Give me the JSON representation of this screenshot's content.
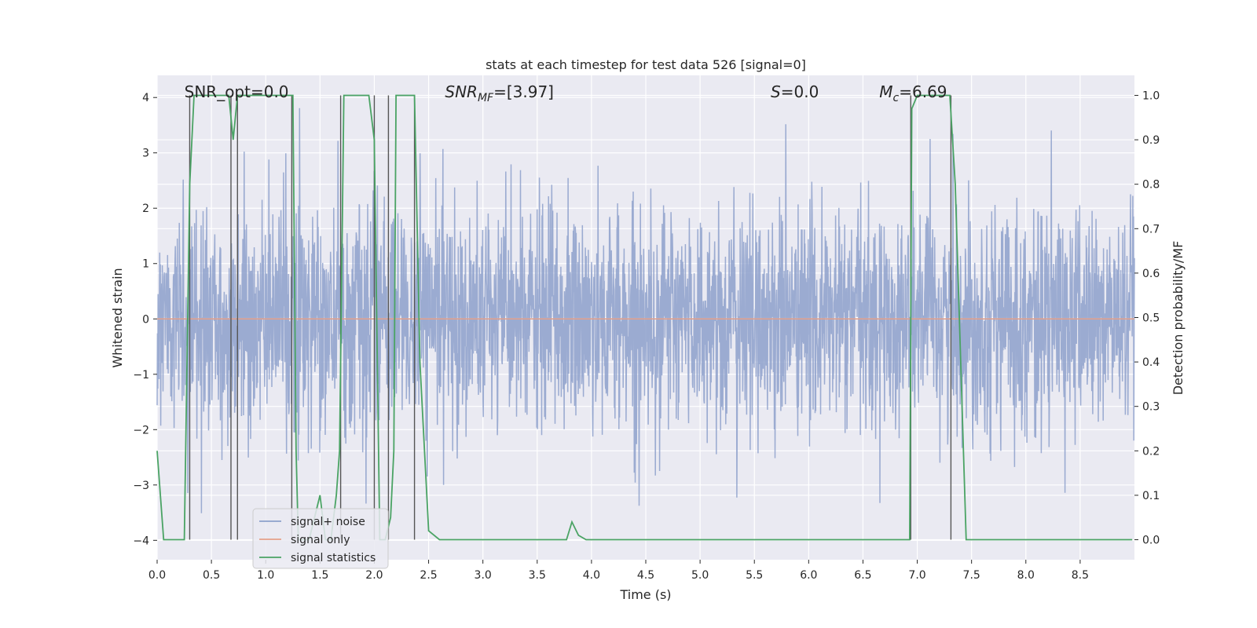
{
  "chart_data": {
    "type": "line",
    "title": "stats at each timestep for test data 526 [signal=0]",
    "xlabel": "Time (s)",
    "ylabel_left": "Whitened strain",
    "ylabel_right": "Detection probability/MF",
    "xlim": [
      0.0,
      9.0
    ],
    "ylim_left": [
      -4.35,
      4.4
    ],
    "ylim_right": [
      -0.045,
      1.045
    ],
    "x_ticks": [
      "0.0",
      "0.5",
      "1.0",
      "1.5",
      "2.0",
      "2.5",
      "3.0",
      "3.5",
      "4.0",
      "4.5",
      "5.0",
      "5.5",
      "6.0",
      "6.5",
      "7.0",
      "7.5",
      "8.0",
      "8.5"
    ],
    "y_left_ticks": [
      "4",
      "3",
      "2",
      "1",
      "0",
      "−1",
      "−2",
      "−3",
      "−4"
    ],
    "y_right_ticks": [
      "1.0",
      "0.9",
      "0.8",
      "0.7",
      "0.6",
      "0.5",
      "0.4",
      "0.3",
      "0.2",
      "0.1",
      "0.0"
    ],
    "annotations": [
      {
        "text": "SNR_opt=0.0",
        "x": 0.2
      },
      {
        "text": "SNR_MF=[3.97]",
        "x": 2.6
      },
      {
        "text": "S=0.0",
        "x": 5.6
      },
      {
        "text": "M_c=6.69",
        "x": 6.6
      }
    ],
    "legend": {
      "position": "lower-left",
      "entries": [
        {
          "label": "signal+ noise",
          "color": "#8da0cb"
        },
        {
          "label": "signal only",
          "color": "#e5a08a"
        },
        {
          "label": "signal statistics",
          "color": "#4aa364"
        }
      ]
    },
    "series": [
      {
        "name": "signal+ noise",
        "kind": "noise",
        "color": "#8da0cb",
        "sigma": 1.0,
        "peak_max": 4.0,
        "peak_min": -3.9
      },
      {
        "name": "signal only",
        "kind": "flat",
        "color": "#e5a08a",
        "value": 0.0
      },
      {
        "name": "signal statistics",
        "color": "#4aa364",
        "axis": "right",
        "x": [
          0.0,
          0.06,
          0.1,
          0.25,
          0.3,
          0.34,
          0.38,
          0.46,
          0.66,
          0.7,
          0.74,
          0.8,
          1.0,
          1.25,
          1.28,
          1.3,
          1.4,
          1.5,
          1.55,
          1.6,
          1.65,
          1.68,
          1.72,
          1.8,
          1.95,
          2.0,
          2.05,
          2.1,
          2.15,
          2.18,
          2.2,
          2.3,
          2.37,
          2.42,
          2.5,
          2.6,
          2.7,
          3.0,
          3.5,
          3.77,
          3.82,
          3.88,
          3.95,
          4.1,
          5.0,
          6.0,
          6.5,
          6.93,
          6.95,
          7.0,
          7.06,
          7.3,
          7.35,
          7.45,
          7.5,
          8.0,
          8.98
        ],
        "y": [
          0.2,
          0.0,
          0.0,
          0.0,
          0.8,
          1.0,
          1.0,
          1.0,
          1.0,
          0.9,
          1.0,
          1.0,
          1.0,
          1.0,
          0.2,
          0.0,
          0.0,
          0.1,
          0.0,
          0.0,
          0.1,
          0.2,
          1.0,
          1.0,
          1.0,
          0.9,
          0.0,
          0.0,
          0.05,
          0.2,
          1.0,
          1.0,
          1.0,
          0.4,
          0.02,
          0.0,
          0.0,
          0.0,
          0.0,
          0.0,
          0.04,
          0.01,
          0.0,
          0.0,
          0.0,
          0.0,
          0.0,
          0.0,
          0.97,
          1.0,
          1.0,
          1.0,
          0.8,
          0.0,
          0.0,
          0.0,
          0.0
        ]
      }
    ],
    "vlines": [
      0.3,
      0.68,
      0.74,
      1.24,
      1.69,
      2.0,
      2.13,
      2.37,
      6.94,
      7.31
    ]
  }
}
